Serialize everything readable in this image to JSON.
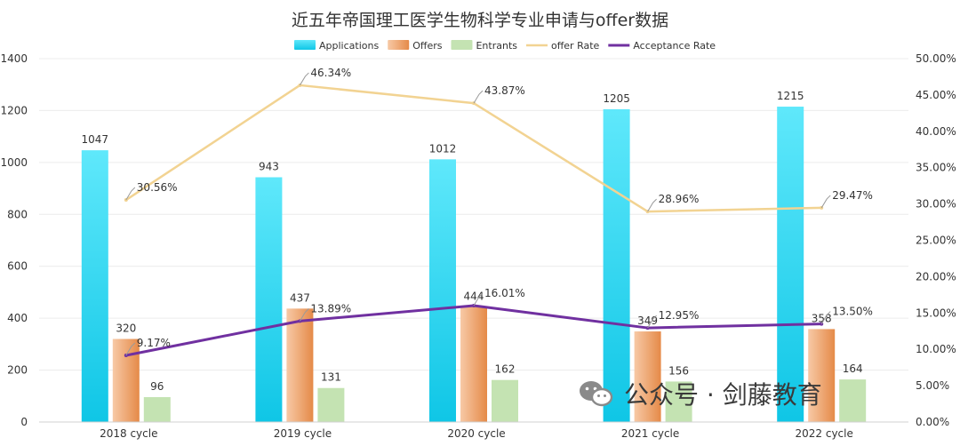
{
  "chart_data": {
    "type": "bar",
    "title": "近五年帝国理工医学生物科学专业申请与offer数据",
    "categories": [
      "2018 cycle",
      "2019 cycle",
      "2020 cycle",
      "2021 cycle",
      "2022 cycle"
    ],
    "series": [
      {
        "name": "Applications",
        "kind": "bar",
        "axis": "left",
        "values": [
          1047,
          943,
          1012,
          1205,
          1215
        ],
        "labels": [
          "1047",
          "943",
          "1012",
          "1205",
          "1215"
        ]
      },
      {
        "name": "Offers",
        "kind": "bar",
        "axis": "left",
        "values": [
          320,
          437,
          444,
          349,
          358
        ],
        "labels": [
          "320",
          "437",
          "444",
          "349",
          "358"
        ]
      },
      {
        "name": "Entrants",
        "kind": "bar",
        "axis": "left",
        "values": [
          96,
          131,
          162,
          156,
          164
        ],
        "labels": [
          "96",
          "131",
          "162",
          "156",
          "164"
        ]
      },
      {
        "name": "offer Rate",
        "kind": "line",
        "axis": "right",
        "values": [
          30.56,
          46.34,
          43.87,
          28.96,
          29.47
        ],
        "labels": [
          "30.56%",
          "46.34%",
          "43.87%",
          "28.96%",
          "29.47%"
        ]
      },
      {
        "name": "Acceptance Rate",
        "kind": "line",
        "axis": "right",
        "values": [
          9.17,
          13.89,
          16.01,
          12.95,
          13.5
        ],
        "labels": [
          "9.17%",
          "13.89%",
          "16.01%",
          "12.95%",
          "13.50%"
        ]
      }
    ],
    "y_left": {
      "min": 0,
      "max": 1400,
      "ticks": [
        "0",
        "200",
        "400",
        "600",
        "800",
        "1000",
        "1200",
        "1400"
      ]
    },
    "y_right": {
      "min": 0,
      "max": 50,
      "ticks": [
        "0.00%",
        "5.00%",
        "10.00%",
        "15.00%",
        "20.00%",
        "25.00%",
        "30.00%",
        "35.00%",
        "40.00%",
        "45.00%",
        "50.00%"
      ]
    },
    "grid": true,
    "legend_position": "top-center",
    "colors": {
      "applications_top": "#5fe8fb",
      "applications_bottom": "#0fc6e6",
      "offers_light": "#f7c9a6",
      "offers_dark": "#e58a48",
      "entrants": "#c4e3b2",
      "offer_rate": "#f2d392",
      "acceptance_rate": "#7030a0",
      "grid": "#ececec",
      "axis_text": "#333333",
      "label_text": "#333333"
    }
  },
  "watermark": {
    "text": "公众号 · 剑藤教育",
    "icon": "wechat-icon"
  }
}
